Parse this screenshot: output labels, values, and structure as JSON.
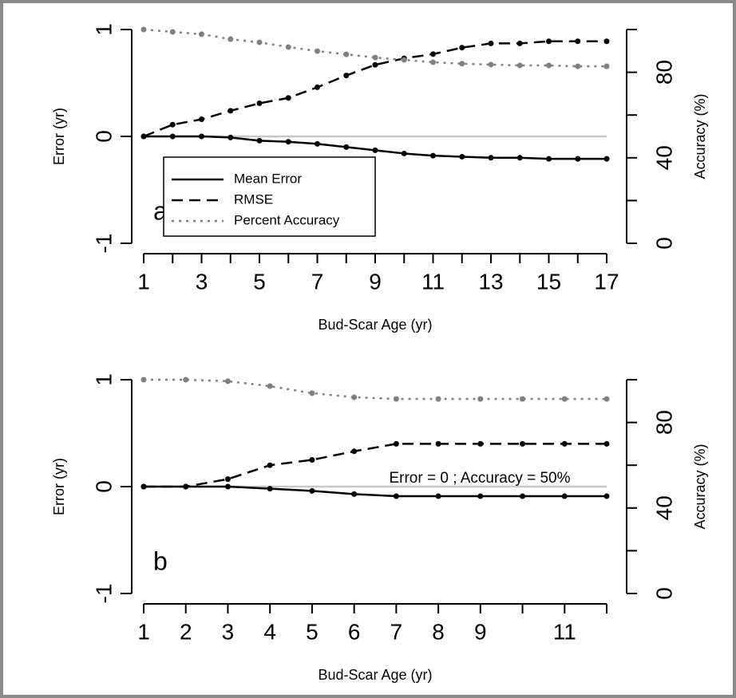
{
  "chart_data": [
    {
      "type": "line",
      "annotation": "a",
      "xlabel": "Bud-Scar Age (yr)",
      "ylabel": "Error (yr)",
      "y2label": "Accuracy (%)",
      "x": [
        1,
        2,
        3,
        4,
        5,
        6,
        7,
        8,
        9,
        10,
        11,
        12,
        13,
        14,
        15,
        16,
        17
      ],
      "xlim": [
        1,
        17
      ],
      "xticks": [
        1,
        3,
        5,
        7,
        9,
        11,
        13,
        15,
        17
      ],
      "xminorticks": [
        2,
        4,
        6,
        8,
        10,
        12,
        14,
        16
      ],
      "ylim": [
        -1,
        1
      ],
      "yticks": [
        -1,
        0,
        1
      ],
      "y2lim": [
        0,
        100
      ],
      "y2ticks": [
        0,
        40,
        80
      ],
      "y2minorticks": [
        20,
        60,
        100
      ],
      "reference_line": {
        "y": 0,
        "color": "#c8c8c8"
      },
      "legend": "bottom-left",
      "series": [
        {
          "name": "Mean Error",
          "color": "#000000",
          "dash": "solid",
          "values": [
            0,
            0,
            0,
            -0.01,
            -0.04,
            -0.05,
            -0.07,
            -0.1,
            -0.13,
            -0.16,
            -0.18,
            -0.19,
            -0.2,
            -0.2,
            -0.21,
            -0.21,
            -0.21
          ]
        },
        {
          "name": "RMSE",
          "color": "#000000",
          "dash": "dashed",
          "values": [
            0,
            0.11,
            0.16,
            0.24,
            0.31,
            0.36,
            0.46,
            0.57,
            0.67,
            0.73,
            0.77,
            0.83,
            0.87,
            0.87,
            0.89,
            0.89,
            0.89
          ]
        },
        {
          "name": "Percent Accuracy",
          "color": "#808080",
          "dash": "dotted",
          "axis": "y2",
          "values": [
            100,
            98.9,
            97.8,
            95.5,
            94,
            91.8,
            89.9,
            88.4,
            86.9,
            85.8,
            84.7,
            84,
            83.6,
            83.2,
            83.2,
            82.8,
            82.8
          ]
        }
      ]
    },
    {
      "type": "line",
      "annotation": "b",
      "note": "Error = 0 ; Accuracy = 50%",
      "note_color": "#c0c0c0",
      "xlabel": "Bud-Scar Age (yr)",
      "ylabel": "Error (yr)",
      "y2label": "Accuracy (%)",
      "x": [
        1,
        2,
        3,
        4,
        5,
        6,
        7,
        8,
        9,
        10,
        11,
        12
      ],
      "xlim": [
        1,
        12
      ],
      "xticks": [
        1,
        2,
        3,
        4,
        5,
        6,
        7,
        8,
        9,
        11
      ],
      "xminorticks": [
        10,
        12
      ],
      "ylim": [
        -1,
        1
      ],
      "yticks": [
        -1,
        0,
        1
      ],
      "y2lim": [
        0,
        100
      ],
      "y2ticks": [
        0,
        40,
        80
      ],
      "y2minorticks": [
        20,
        60,
        100
      ],
      "reference_line": {
        "y": 0,
        "color": "#c8c8c8"
      },
      "series": [
        {
          "color": "#000000",
          "dash": "solid",
          "values": [
            0,
            0,
            0,
            -0.02,
            -0.04,
            -0.07,
            -0.09,
            -0.09,
            -0.09,
            -0.09,
            -0.09,
            -0.09
          ]
        },
        {
          "color": "#000000",
          "dash": "dashed",
          "values": [
            0,
            0,
            0.07,
            0.2,
            0.25,
            0.33,
            0.4,
            0.4,
            0.4,
            0.4,
            0.4,
            0.4
          ]
        },
        {
          "color": "#808080",
          "dash": "dotted",
          "axis": "y2",
          "values": [
            100,
            100,
            99.3,
            97,
            93.7,
            91.8,
            91,
            91,
            91,
            91,
            91,
            91
          ]
        }
      ]
    }
  ]
}
